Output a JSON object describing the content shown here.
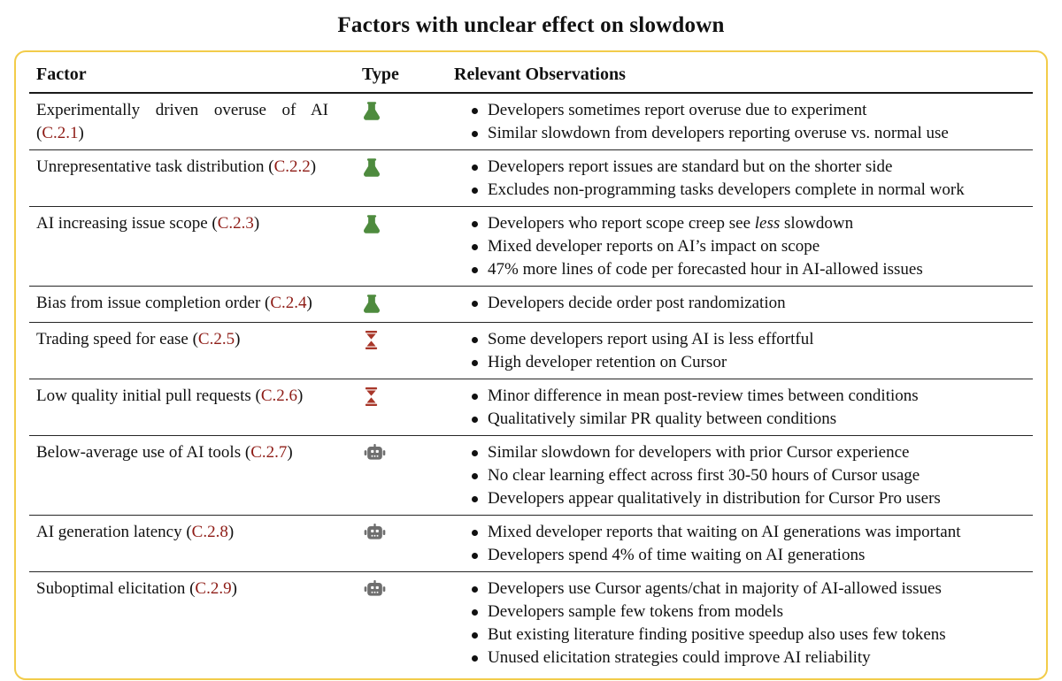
{
  "title": "Factors with unclear effect on slowdown",
  "colors": {
    "panel_border": "#F2CC4A",
    "reference_red": "#8E1C16",
    "rule_black": "#1a1a1a"
  },
  "table": {
    "headers": {
      "factor": "Factor",
      "type": "Type",
      "observations": "Relevant Observations"
    },
    "icon_colors": {
      "flask-icon": "#4E8B3E",
      "hourglass-icon": "#A8372A",
      "robot-icon": "#6E6E6E"
    },
    "rows": [
      {
        "factor": "Experimentally driven overuse of AI",
        "ref": "C.2.1",
        "type": "flask-icon",
        "observations": [
          "Developers sometimes report overuse due to experiment",
          "Similar slowdown from developers reporting overuse vs. normal use"
        ]
      },
      {
        "factor": "Unrepresentative task distribution",
        "ref": "C.2.2",
        "type": "flask-icon",
        "observations": [
          "Developers report issues are standard but on the shorter side",
          "Excludes non-programming tasks developers complete in normal work"
        ]
      },
      {
        "factor": "AI increasing issue scope",
        "ref": "C.2.3",
        "type": "flask-icon",
        "observations": [
          {
            "pre": "Developers who report scope creep see ",
            "italic": "less",
            "post": " slowdown"
          },
          "Mixed developer reports on AI’s impact on scope",
          "47% more lines of code per forecasted hour in AI-allowed issues"
        ]
      },
      {
        "factor": "Bias from issue completion order",
        "ref": "C.2.4",
        "type": "flask-icon",
        "observations": [
          "Developers decide order post randomization"
        ]
      },
      {
        "factor": "Trading speed for ease",
        "ref": "C.2.5",
        "type": "hourglass-icon",
        "observations": [
          "Some developers report using AI is less effortful",
          "High developer retention on Cursor"
        ]
      },
      {
        "factor": "Low quality initial pull requests",
        "ref": "C.2.6",
        "type": "hourglass-icon",
        "observations": [
          "Minor difference in mean post-review times between conditions",
          "Qualitatively similar PR quality between conditions"
        ]
      },
      {
        "factor": "Below-average use of AI tools",
        "ref": "C.2.7",
        "type": "robot-icon",
        "observations": [
          "Similar slowdown for developers with prior Cursor experience",
          "No clear learning effect across first 30-50 hours of Cursor usage",
          "Developers appear qualitatively in distribution for Cursor Pro users"
        ]
      },
      {
        "factor": "AI generation latency",
        "ref": "C.2.8",
        "type": "robot-icon",
        "observations": [
          "Mixed developer reports that waiting on AI generations was important",
          "Developers spend 4% of time waiting on AI generations"
        ]
      },
      {
        "factor": "Suboptimal elicitation",
        "ref": "C.2.9",
        "type": "robot-icon",
        "observations": [
          "Developers use Cursor agents/chat in majority of AI-allowed issues",
          "Developers sample few tokens from models",
          "But existing literature finding positive speedup also uses few tokens",
          "Unused elicitation strategies could improve AI reliability"
        ]
      }
    ]
  }
}
